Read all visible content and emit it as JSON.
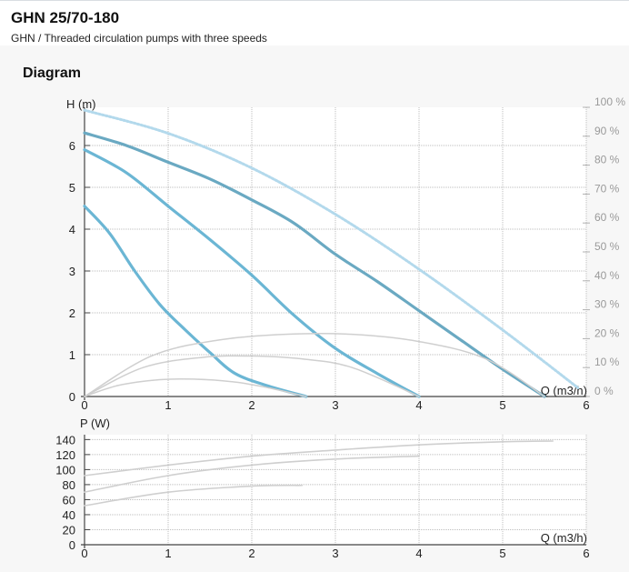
{
  "header": {
    "title": "GHN 25/70-180",
    "subtitle": "GHN / Threaded circulation pumps with three speeds"
  },
  "section": {
    "title": "Diagram"
  },
  "colors": {
    "pump_curve": "#6bb6d4",
    "pump_curve_max": "#6aa9c2",
    "efficiency_curve": "#b3d9ec",
    "secondary_curve": "#cfcfcf",
    "grid": "#bdbdbd",
    "axis": "#444444"
  },
  "chart_data": [
    {
      "type": "line",
      "name": "head",
      "xlabel": "Q (m3/h)",
      "ylabel": "H (m)",
      "y2label": "",
      "xlim": [
        0,
        6
      ],
      "ylim": [
        0,
        7
      ],
      "y2lim": [
        0,
        100
      ],
      "xticks": [
        "0",
        "1",
        "2",
        "3",
        "4",
        "5",
        "6"
      ],
      "yticks": [
        "0",
        "1",
        "2",
        "3",
        "4",
        "5",
        "6"
      ],
      "y2ticks": [
        "0 %",
        "10 %",
        "20 %",
        "30 %",
        "40 %",
        "50 %",
        "60 %",
        "70 %",
        "80 %",
        "90 %",
        "100 %"
      ],
      "grid": true,
      "series": [
        {
          "role": "speed-3",
          "x": [
            0,
            0.5,
            1,
            1.5,
            2,
            2.5,
            3,
            3.5,
            4,
            4.5,
            5,
            5.5
          ],
          "y": [
            6.3,
            6.0,
            5.6,
            5.2,
            4.7,
            4.15,
            3.4,
            2.75,
            2.05,
            1.35,
            0.65,
            0
          ]
        },
        {
          "role": "speed-2",
          "x": [
            0,
            0.5,
            1,
            1.5,
            2,
            2.5,
            3,
            3.5,
            4
          ],
          "y": [
            5.9,
            5.35,
            4.55,
            3.75,
            2.9,
            1.95,
            1.15,
            0.55,
            0
          ]
        },
        {
          "role": "speed-1",
          "x": [
            0,
            0.3,
            0.6,
            0.9,
            1.2,
            1.5,
            1.8,
            2.2,
            2.65
          ],
          "y": [
            4.55,
            3.9,
            3.0,
            2.2,
            1.6,
            1.05,
            0.55,
            0.25,
            0
          ]
        },
        {
          "role": "efficiency-max",
          "axis": "y2",
          "x": [
            0,
            1,
            2,
            3,
            4,
            5,
            5.9
          ],
          "y": [
            99,
            91,
            79,
            63,
            44,
            23,
            3
          ]
        },
        {
          "role": "efficiency-3",
          "axis": "y2",
          "x": [
            0,
            0.8,
            1.6,
            2.4,
            3.2,
            4,
            4.8,
            5.5
          ],
          "y": [
            0,
            14,
            19.5,
            21.5,
            21.5,
            19,
            13,
            0
          ]
        },
        {
          "role": "efficiency-2",
          "axis": "y2",
          "x": [
            0,
            0.7,
            1.4,
            2,
            2.6,
            3.2,
            4
          ],
          "y": [
            0,
            10,
            13.5,
            14,
            13,
            10,
            0
          ]
        },
        {
          "role": "efficiency-1",
          "axis": "y2",
          "x": [
            0,
            0.4,
            0.9,
            1.3,
            1.8,
            2.2,
            2.65
          ],
          "y": [
            0,
            3.8,
            5.8,
            6,
            5,
            3,
            0
          ]
        }
      ]
    },
    {
      "type": "line",
      "name": "power",
      "xlabel": "Q (m3/h)",
      "ylabel": "P (W)",
      "xlim": [
        0,
        6
      ],
      "ylim": [
        0,
        150
      ],
      "xticks": [
        "0",
        "1",
        "2",
        "3",
        "4",
        "5",
        "6"
      ],
      "yticks": [
        "0",
        "20",
        "40",
        "60",
        "80",
        "100",
        "120",
        "140"
      ],
      "grid": true,
      "series": [
        {
          "role": "speed-3",
          "x": [
            0,
            1,
            2,
            3,
            4,
            5,
            5.6
          ],
          "y": [
            92,
            106,
            118,
            126,
            133,
            137,
            138
          ]
        },
        {
          "role": "speed-2",
          "x": [
            0,
            1,
            2,
            3,
            4
          ],
          "y": [
            70,
            92,
            106,
            114,
            118
          ]
        },
        {
          "role": "speed-1",
          "x": [
            0,
            1,
            2,
            2.6
          ],
          "y": [
            52,
            70,
            78,
            79
          ]
        }
      ]
    }
  ]
}
